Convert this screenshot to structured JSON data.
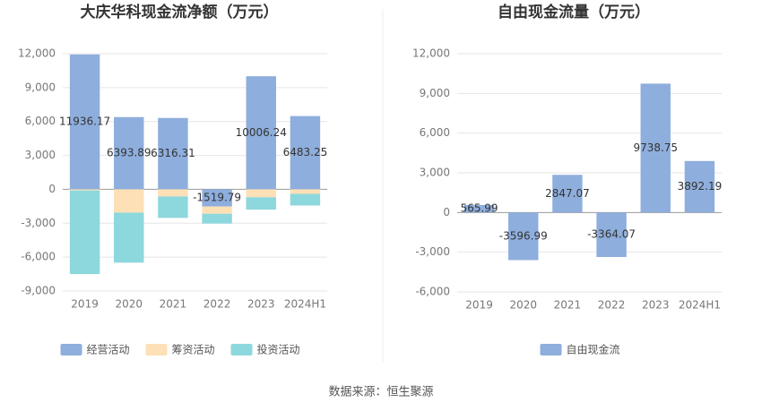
{
  "chart_data": [
    {
      "type": "bar",
      "stacked": true,
      "title": "大庆华科现金流净额（万元）",
      "categories": [
        "2019",
        "2020",
        "2021",
        "2022",
        "2023",
        "2024H1"
      ],
      "series": [
        {
          "name": "经营活动",
          "color": "#8eaedd",
          "values": [
            11936.17,
            6393.89,
            6316.31,
            -1519.79,
            10006.24,
            6483.25
          ],
          "show_labels": true
        },
        {
          "name": "筹资活动",
          "color": "#fde0b5",
          "values": [
            -100,
            -2060,
            -630,
            -640,
            -700,
            -400
          ]
        },
        {
          "name": "投资活动",
          "color": "#8dd8dc",
          "values": [
            -7400,
            -4430,
            -1900,
            -870,
            -1100,
            -1030
          ]
        }
      ],
      "ylim": [
        -9000,
        12000
      ],
      "yticks": [
        {
          "value": -9000,
          "label": "-9,000"
        },
        {
          "value": -6000,
          "label": "-6,000"
        },
        {
          "value": -3000,
          "label": "-3,000"
        },
        0,
        {
          "value": 3000,
          "label": "3,000"
        },
        {
          "value": 6000,
          "label": "6,000"
        },
        {
          "value": 9000,
          "label": "9,000"
        },
        {
          "value": 12000,
          "label": "12,000"
        }
      ],
      "grid": true
    },
    {
      "type": "bar",
      "title": "自由现金流量（万元）",
      "categories": [
        "2019",
        "2020",
        "2021",
        "2022",
        "2023",
        "2024H1"
      ],
      "series": [
        {
          "name": "自由现金流",
          "color": "#8eaedd",
          "values": [
            565.99,
            -3596.99,
            2847.07,
            -3364.07,
            9738.75,
            3892.19
          ],
          "show_labels": true
        }
      ],
      "ylim": [
        -6000,
        12000
      ],
      "yticks": [
        {
          "value": -6000,
          "label": "-6,000"
        },
        {
          "value": -3000,
          "label": "-3,000"
        },
        0,
        {
          "value": 3000,
          "label": "3,000"
        },
        {
          "value": 6000,
          "label": "6,000"
        },
        {
          "value": 9000,
          "label": "9,000"
        },
        {
          "value": 12000,
          "label": "12,000"
        }
      ],
      "grid": true
    }
  ],
  "source": "数据来源：恒生聚源"
}
